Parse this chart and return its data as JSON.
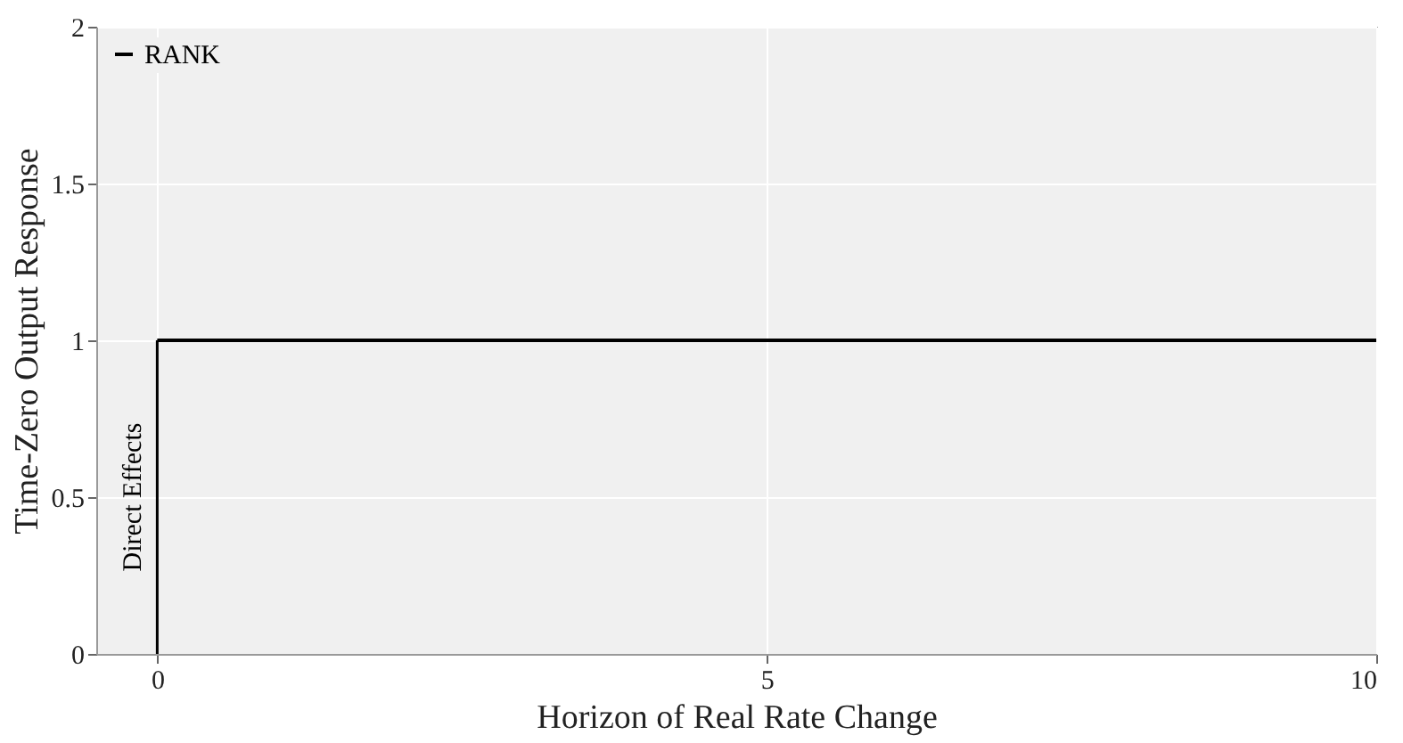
{
  "chart_data": {
    "type": "line",
    "xlabel": "Horizon of Real Rate Change",
    "ylabel": "Time-Zero Output Response",
    "x": [
      0,
      10
    ],
    "series": [
      {
        "name": "RANK",
        "color": "#000000",
        "values": [
          1,
          1
        ]
      },
      {
        "color": "#000000",
        "x": [
          0,
          0
        ],
        "values": [
          0,
          1
        ]
      }
    ],
    "annotations": [
      {
        "text": "Direct Effects",
        "x": 0,
        "y": 0.5
      }
    ],
    "xlim": [
      -0.5,
      10
    ],
    "xticks": [
      0,
      5,
      10
    ],
    "ylim": [
      0,
      2
    ],
    "yticks": [
      0,
      0.5,
      1,
      1.5,
      2
    ],
    "grid": true,
    "legend": "top left",
    "marker": "none",
    "line_style": "solid"
  }
}
